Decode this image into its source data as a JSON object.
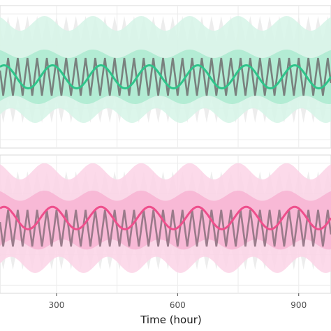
{
  "chart_data": {
    "type": "line",
    "xlabel": "Time (hour)",
    "x_ticks": [
      300,
      600,
      900
    ],
    "xlim": [
      160,
      980
    ],
    "grid": true,
    "panels": [
      {
        "ylim": [
          -3.4,
          3.4
        ],
        "colors": {
          "line": "#2fc48a",
          "band_outer": "#d6f5e7",
          "band_inner": "#a6e9cc",
          "grey_band": "#ebebeb",
          "grey_line": "#6e6e6e"
        },
        "series": [
          {
            "role": "forecast_mean",
            "period": 120,
            "amplitude": 0.55,
            "mean": 0.0
          },
          {
            "role": "forecast_band_outer",
            "period": 120,
            "half_width_mean": 2.2,
            "half_width_amp": 0.35,
            "center": 0.35
          },
          {
            "role": "forecast_band_inner",
            "period": 120,
            "half_width_mean": 1.1,
            "half_width_amp": 0.2,
            "center": 0.0
          },
          {
            "role": "observed",
            "period": 24,
            "amplitude": 0.9,
            "mean": 0.0
          },
          {
            "role": "observed_band",
            "period": 24,
            "half_width": 1.5,
            "center": 0.8
          }
        ]
      },
      {
        "ylim": [
          -3.4,
          3.4
        ],
        "colors": {
          "line": "#ee4f8c",
          "band_outer": "#fbd3e6",
          "band_inner": "#f7afd0",
          "grey_band": "#ebebeb",
          "grey_line": "#8a6f7c"
        },
        "series": [
          {
            "role": "forecast_mean",
            "period": 120,
            "amplitude": 0.55,
            "mean": 0.3
          },
          {
            "role": "forecast_band_outer",
            "period": 120,
            "half_width_mean": 2.3,
            "half_width_amp": 0.4,
            "center": 0.3
          },
          {
            "role": "forecast_band_inner",
            "period": 120,
            "half_width_mean": 1.2,
            "half_width_amp": 0.25,
            "center": 0.2
          },
          {
            "role": "observed",
            "period": 24,
            "amplitude": 0.9,
            "mean": -0.2
          },
          {
            "role": "observed_band",
            "period": 24,
            "half_width": 1.4,
            "center": 0.6
          }
        ]
      }
    ]
  }
}
